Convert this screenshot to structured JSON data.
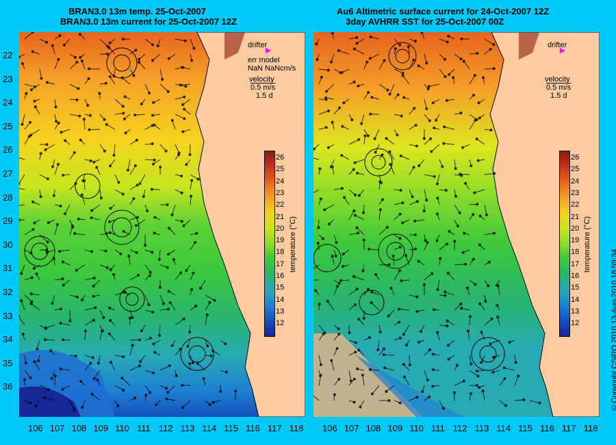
{
  "left_panel": {
    "title_line1": "BRAN3.0 13m temp. 25-Oct-2007",
    "title_line2": "BRAN3.0 13m current for 25-Oct-2007 12Z",
    "legend": {
      "drifter": "drifter",
      "err_model": "err model",
      "nan": "NaN NaNcm/s",
      "velocity": "velocity",
      "scale": "0.5 m/s",
      "days": "1.5 d"
    }
  },
  "right_panel": {
    "title_line1": "Au6 Altimetric surface current for 24-Oct-2007 12Z",
    "title_line2": "3day AVHRR SST for 25-Oct-2007 00Z",
    "legend": {
      "drifter": "drifter",
      "velocity": "velocity",
      "scale": "0.5 m/s",
      "days": "1.5 d"
    }
  },
  "colorbar": {
    "label": "temperature (°C)",
    "ticks": [
      "26",
      "25",
      "24",
      "23",
      "22",
      "21",
      "20",
      "19",
      "18",
      "17",
      "16",
      "15",
      "14",
      "13",
      "12"
    ],
    "colors": [
      "#8b1a10",
      "#c8321e",
      "#e8641e",
      "#f5a028",
      "#f5d21e",
      "#c8e61e",
      "#8cdc28",
      "#3cc83c",
      "#28b46e",
      "#28aab4",
      "#1e82d2",
      "#1450be",
      "#142896"
    ]
  },
  "axes": {
    "latitudes": [
      "22",
      "23",
      "24",
      "25",
      "26",
      "27",
      "28",
      "29",
      "30",
      "31",
      "32",
      "33",
      "34",
      "35",
      "36"
    ],
    "longitudes": [
      "106",
      "107",
      "108",
      "109",
      "110",
      "111",
      "112",
      "113",
      "114",
      "115",
      "116",
      "117",
      "118"
    ]
  },
  "copyright": "© Copyright CSIRO 2010   13-Aug-2010 18:59:34"
}
